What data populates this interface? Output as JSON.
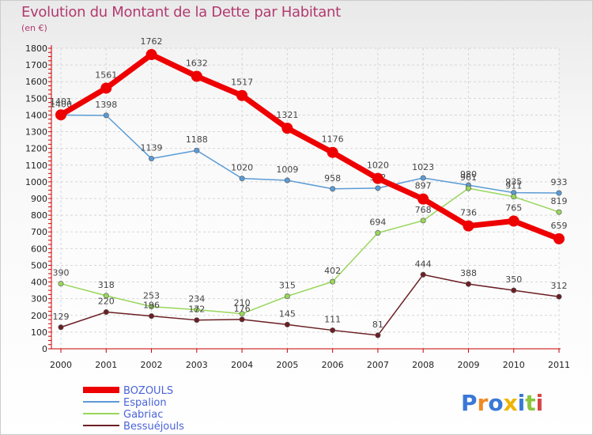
{
  "title": "Evolution du Montant de la Dette par Habitant",
  "subtitle": "(en €)",
  "logo": "Proxiti",
  "colors": {
    "title": "#b23a6f",
    "axis": "#cc0000",
    "grid": "#d6d6d6",
    "legend_text": "#4a63d8"
  },
  "chart_data": {
    "type": "line",
    "x": [
      2000,
      2001,
      2002,
      2003,
      2004,
      2005,
      2006,
      2007,
      2008,
      2009,
      2010,
      2011
    ],
    "ylim": [
      0,
      1800
    ],
    "yticks": [
      0,
      100,
      200,
      300,
      400,
      500,
      600,
      700,
      800,
      900,
      1000,
      1100,
      1200,
      1300,
      1400,
      1500,
      1600,
      1700,
      1800
    ],
    "grid": true,
    "legend_position": "bottom-left",
    "series": [
      {
        "name": "Espalion",
        "color": "#5b9bd5",
        "values": [
          1400,
          1398,
          1139,
          1188,
          1020,
          1009,
          958,
          962,
          1023,
          980,
          935,
          933
        ],
        "labels": [
          "1400",
          "1398",
          "1139",
          "1188",
          "1020",
          "1009",
          "958",
          "962",
          "1023",
          "980",
          "935",
          "933"
        ]
      },
      {
        "name": "Gabriac",
        "color": "#99d65c",
        "values": [
          390,
          318,
          253,
          234,
          210,
          315,
          402,
          694,
          768,
          961,
          911,
          819
        ],
        "labels": [
          "390",
          "318",
          "253",
          "234",
          "210",
          "315",
          "402",
          "694",
          "768",
          "961",
          "911",
          "819"
        ]
      },
      {
        "name": "Bessuéjouls",
        "color": "#6b1f24",
        "values": [
          129,
          220,
          196,
          172,
          176,
          145,
          111,
          81,
          444,
          388,
          350,
          312
        ],
        "labels": [
          "129",
          "220",
          "196",
          "172",
          "176",
          "145",
          "111",
          "81",
          "444",
          "388",
          "350",
          "312"
        ]
      },
      {
        "name": "BOZOULS",
        "color": "#ee0000",
        "values": [
          1401,
          1561,
          1762,
          1632,
          1517,
          1321,
          1176,
          1020,
          897,
          736,
          765,
          659
        ],
        "labels": [
          "1401",
          "1561",
          "1762",
          "1632",
          "1517",
          "1321",
          "1176",
          "1020",
          "897",
          "736",
          "765",
          "659"
        ]
      }
    ],
    "legend": [
      "BOZOULS",
      "Espalion",
      "Gabriac",
      "Bessuéjouls"
    ]
  }
}
